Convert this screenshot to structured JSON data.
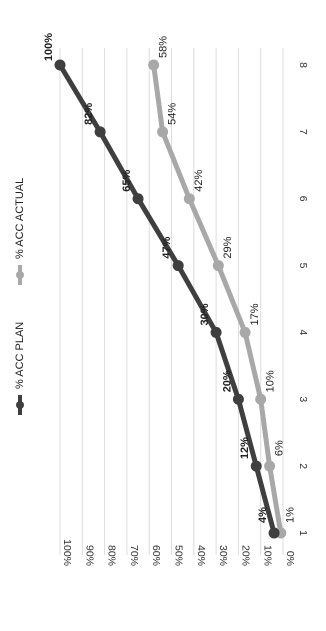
{
  "chart_data": {
    "type": "line",
    "x": [
      1,
      2,
      3,
      4,
      5,
      6,
      7,
      8
    ],
    "ylim": [
      0,
      100
    ],
    "yticks": [
      "0%",
      "10%",
      "20%",
      "30%",
      "40%",
      "50%",
      "60%",
      "70%",
      "80%",
      "90%",
      "100%"
    ],
    "xticks": [
      "1",
      "2",
      "3",
      "4",
      "5",
      "6",
      "7",
      "8"
    ],
    "grid": true,
    "legend": "top",
    "orientation": "rotated-90-clockwise",
    "series": [
      {
        "name": "% ACC PLAN",
        "color": "#3f3f3f",
        "values": [
          4,
          12,
          20,
          30,
          47,
          65,
          82,
          100
        ],
        "labels": [
          "4%",
          "12%",
          "20%",
          "30%",
          "47%",
          "65%",
          "82%",
          "100%"
        ]
      },
      {
        "name": "% ACC ACTUAL",
        "color": "#a8a8a8",
        "values": [
          1,
          6,
          10,
          17,
          29,
          42,
          54,
          58
        ],
        "labels": [
          "1%",
          "6%",
          "10%",
          "17%",
          "29%",
          "42%",
          "54%",
          "58%"
        ]
      }
    ]
  }
}
